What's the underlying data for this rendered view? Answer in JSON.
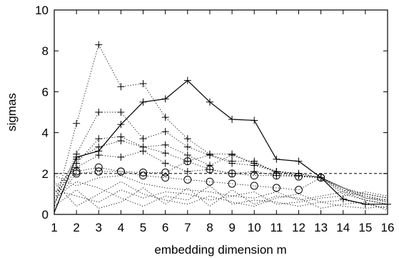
{
  "chart_data": {
    "type": "line",
    "title": "",
    "xlabel": "embedding dimension m",
    "ylabel": "sigmas",
    "xlim": [
      1,
      16
    ],
    "ylim": [
      0,
      10
    ],
    "xticks": [
      1,
      2,
      3,
      4,
      5,
      6,
      7,
      8,
      9,
      10,
      11,
      12,
      13,
      14,
      15,
      16
    ],
    "yticks": [
      0,
      2,
      4,
      6,
      8,
      10
    ],
    "grid": false,
    "threshold": 2,
    "main_series": {
      "style": "solid",
      "marker": "+",
      "x": [
        1,
        2,
        3,
        4,
        5,
        6,
        7,
        8,
        9,
        10,
        11,
        12,
        13,
        14,
        15,
        16
      ],
      "y": [
        0.1,
        2.8,
        3.1,
        4.4,
        5.5,
        5.65,
        6.55,
        5.5,
        4.65,
        4.6,
        2.7,
        2.6,
        1.8,
        0.75,
        0.5,
        0.5
      ]
    },
    "background_series": [
      {
        "style": "dotted",
        "marker": "+",
        "x": [
          1,
          2,
          3,
          4,
          5,
          6,
          7,
          8,
          9,
          10,
          11,
          12,
          13,
          14,
          15,
          16
        ],
        "y": [
          0.3,
          4.45,
          8.3,
          6.25,
          6.4,
          4.75,
          3.7,
          2.95,
          2.95,
          2.5,
          2.1,
          2.0,
          1.8,
          1.3,
          1.0,
          0.8
        ]
      },
      {
        "style": "dotted",
        "marker": "+",
        "x": [
          1,
          2,
          3,
          4,
          5,
          6,
          7,
          8,
          9,
          10,
          11,
          12,
          13,
          14,
          15,
          16
        ],
        "y": [
          0.5,
          2.95,
          5.0,
          5.0,
          3.7,
          4.05,
          3.3,
          2.9,
          2.6,
          2.6,
          2.0,
          1.9,
          1.8,
          1.2,
          1.0,
          0.8
        ]
      },
      {
        "style": "dotted",
        "marker": "+",
        "x": [
          1,
          2,
          3,
          4,
          5,
          6,
          7,
          8,
          9,
          10,
          11,
          12,
          13,
          14,
          15,
          16
        ],
        "y": [
          0.8,
          2.5,
          3.7,
          3.8,
          3.3,
          3.4,
          2.9,
          2.4,
          2.9,
          2.5,
          2.1,
          2.0,
          1.8,
          1.3,
          0.8,
          0.6
        ]
      },
      {
        "style": "dotted",
        "marker": "+",
        "x": [
          1,
          2,
          3,
          4,
          5,
          6,
          7,
          8,
          9,
          10,
          11,
          12,
          13,
          14,
          15,
          16
        ],
        "y": [
          1.0,
          2.7,
          3.3,
          3.6,
          3.3,
          3.0,
          2.6,
          2.9,
          2.5,
          2.4,
          2.1,
          1.9,
          1.8,
          1.1,
          0.9,
          0.7
        ]
      },
      {
        "style": "dotted",
        "marker": "+",
        "x": [
          1,
          2,
          3,
          4,
          5,
          6,
          7,
          8,
          9,
          10,
          11,
          12,
          13,
          14,
          15,
          16
        ],
        "y": [
          1.3,
          2.3,
          2.9,
          2.8,
          3.1,
          2.5,
          2.1,
          2.2,
          2.0,
          2.1,
          1.9,
          1.9,
          1.8,
          1.2,
          0.8,
          0.7
        ]
      },
      {
        "style": "dotted",
        "marker": "o",
        "x": [
          1,
          2,
          3,
          4,
          5,
          6,
          7,
          8,
          9,
          10,
          11,
          12,
          13,
          14,
          15,
          16
        ],
        "y": [
          1.0,
          2.1,
          2.3,
          2.1,
          2.05,
          2.05,
          2.6,
          2.2,
          2.0,
          1.9,
          1.9,
          1.85,
          1.8,
          1.3,
          0.9,
          0.6
        ]
      },
      {
        "style": "dotted",
        "marker": "o",
        "x": [
          1,
          2,
          3,
          4,
          5,
          6,
          7,
          8,
          9,
          10,
          11,
          12,
          13,
          14,
          15,
          16
        ],
        "y": [
          0.6,
          2.0,
          2.1,
          2.1,
          1.9,
          1.8,
          1.7,
          1.6,
          1.5,
          1.4,
          1.3,
          1.2,
          1.8,
          1.0,
          0.7,
          0.5
        ]
      },
      {
        "style": "dotted",
        "marker": "none",
        "x": [
          1,
          2,
          3,
          4,
          5,
          6,
          7,
          8,
          9,
          10,
          11,
          12,
          13,
          14,
          15,
          16
        ],
        "y": [
          1.9,
          1.4,
          1.8,
          1.9,
          1.5,
          1.3,
          1.2,
          1.1,
          0.9,
          0.8,
          1.1,
          0.7,
          0.9,
          1.1,
          0.7,
          0.5
        ]
      },
      {
        "style": "dotted",
        "marker": "none",
        "x": [
          1,
          2,
          3,
          4,
          5,
          6,
          7,
          8,
          9,
          10,
          11,
          12,
          13,
          14,
          15,
          16
        ],
        "y": [
          1.6,
          0.4,
          1.0,
          1.6,
          1.0,
          0.7,
          0.5,
          0.9,
          0.6,
          0.4,
          0.8,
          1.0,
          0.6,
          0.4,
          0.3,
          0.4
        ]
      },
      {
        "style": "dotted",
        "marker": "none",
        "x": [
          1,
          2,
          3,
          4,
          5,
          6,
          7,
          8,
          9,
          10,
          11,
          12,
          13,
          14,
          15,
          16
        ],
        "y": [
          1.2,
          0.9,
          0.6,
          1.2,
          0.8,
          1.1,
          1.0,
          0.7,
          0.9,
          1.1,
          0.5,
          0.6,
          0.8,
          0.9,
          1.1,
          0.9
        ]
      },
      {
        "style": "dotted",
        "marker": "none",
        "x": [
          1,
          2,
          3,
          4,
          5,
          6,
          7,
          8,
          9,
          10,
          11,
          12,
          13,
          14,
          15,
          16
        ],
        "y": [
          0.8,
          1.6,
          1.3,
          0.8,
          0.4,
          0.9,
          0.7,
          1.4,
          0.5,
          0.7,
          0.6,
          0.4,
          0.6,
          0.7,
          0.5,
          0.3
        ]
      },
      {
        "style": "dotted",
        "marker": "none",
        "x": [
          1,
          2,
          3,
          4,
          5,
          6,
          7,
          8,
          9,
          10,
          11,
          12,
          13,
          14,
          15,
          16
        ],
        "y": [
          0.4,
          1.2,
          0.3,
          0.6,
          1.3,
          0.5,
          1.3,
          0.4,
          1.2,
          0.5,
          0.9,
          0.8,
          0.3,
          0.5,
          0.6,
          0.2
        ]
      }
    ]
  }
}
